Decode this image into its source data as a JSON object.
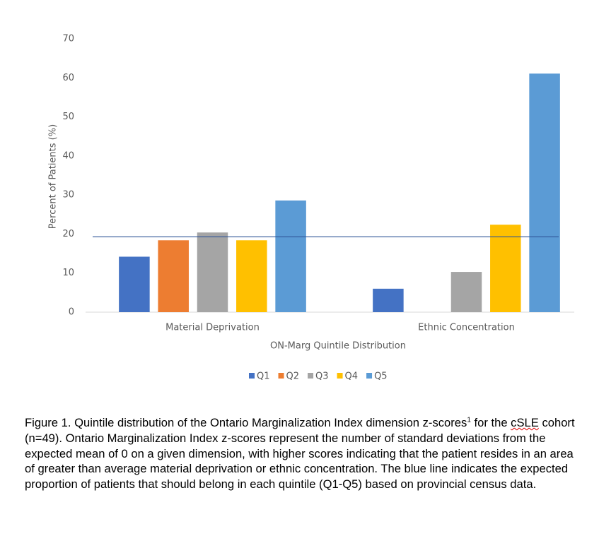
{
  "chart_data": {
    "type": "bar",
    "y_axis_label": "Percent of Patients (%)",
    "x_axis_label": "ON-Marg Quintile Distribution",
    "categories": [
      "Material Deprivation",
      "Ethnic Concentration"
    ],
    "series": [
      {
        "name": "Q1",
        "color": "#4472c4",
        "values": [
          14.2,
          6.0
        ]
      },
      {
        "name": "Q2",
        "color": "#ed7d31",
        "values": [
          18.4,
          0
        ]
      },
      {
        "name": "Q3",
        "color": "#a5a5a5",
        "values": [
          20.4,
          10.3
        ]
      },
      {
        "name": "Q4",
        "color": "#ffc000",
        "values": [
          18.4,
          22.4
        ]
      },
      {
        "name": "Q5",
        "color": "#5b9bd5",
        "values": [
          28.6,
          61.1
        ]
      }
    ],
    "reference_line": 19.3,
    "reference_color": "#2f5597",
    "ylim": [
      0,
      70
    ],
    "yticks": [
      0,
      10,
      20,
      30,
      40,
      50,
      60,
      70
    ],
    "grid": false,
    "legend": "bottom"
  },
  "caption": {
    "before": "Figure 1. Quintile distribution of the Ontario Marginalization Index dimension z-scores",
    "superscript": "1",
    "middle": " for the ",
    "flagged": "cSLE",
    "after": " cohort (n=49). Ontario Marginalization Index z-scores represent the number of standard deviations from the expected mean of 0 on a given dimension, with higher scores indicating that the patient resides in an area of greater than average material deprivation or ethnic concentration. The blue line indicates the expected proportion of patients that should belong in each quintile (Q1-Q5) based on provincial census data."
  }
}
